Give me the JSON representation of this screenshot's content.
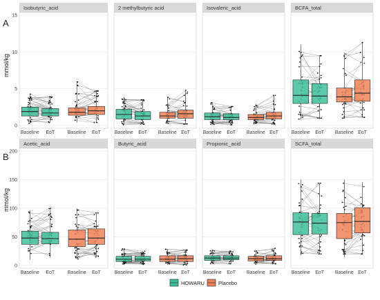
{
  "colors": {
    "howaru": "#3fbf9b",
    "placebo": "#f0825a",
    "strip": "#d9d9d9",
    "grid": "#ebebeb",
    "line": "#7a7a7a"
  },
  "legend": {
    "items": [
      {
        "label": "HOWARU",
        "color": "#3fbf9b"
      },
      {
        "label": "Placebo",
        "color": "#f0825a"
      }
    ]
  },
  "chart_data": [
    {
      "type": "box",
      "panel_label": "A",
      "ylabel": "mmol/kg",
      "ylim": [
        0,
        15
      ],
      "yticks": [
        0,
        5,
        10,
        15
      ],
      "xtick_labels": [
        "Baseline",
        "EoT",
        "Baseline",
        "EoT"
      ],
      "groups": [
        "HOWARU",
        "Placebo"
      ],
      "facets": [
        {
          "title": "Isobutyric_acid",
          "boxes": [
            {
              "group": "HOWARU",
              "time": "Baseline",
              "q1": 1.3,
              "median": 1.9,
              "q3": 2.5,
              "lo": 0.3,
              "hi": 4.3
            },
            {
              "group": "HOWARU",
              "time": "EoT",
              "q1": 1.3,
              "median": 1.7,
              "q3": 2.3,
              "lo": 0.4,
              "hi": 3.9
            },
            {
              "group": "Placebo",
              "time": "Baseline",
              "q1": 1.4,
              "median": 1.8,
              "q3": 2.4,
              "lo": 0.4,
              "hi": 6.0
            },
            {
              "group": "Placebo",
              "time": "EoT",
              "q1": 1.5,
              "median": 2.0,
              "q3": 2.6,
              "lo": 0.4,
              "hi": 4.7
            }
          ]
        },
        {
          "title": "2 methylbutyric acid",
          "boxes": [
            {
              "group": "HOWARU",
              "time": "Baseline",
              "q1": 0.9,
              "median": 1.5,
              "q3": 2.2,
              "lo": 0.1,
              "hi": 3.9
            },
            {
              "group": "HOWARU",
              "time": "EoT",
              "q1": 0.8,
              "median": 1.3,
              "q3": 1.9,
              "lo": 0.2,
              "hi": 3.5
            },
            {
              "group": "Placebo",
              "time": "Baseline",
              "q1": 1.0,
              "median": 1.3,
              "q3": 1.8,
              "lo": 0.2,
              "hi": 3.9
            },
            {
              "group": "Placebo",
              "time": "EoT",
              "q1": 1.0,
              "median": 1.6,
              "q3": 2.1,
              "lo": 0.2,
              "hi": 4.8
            }
          ]
        },
        {
          "title": "Isovaleric_acid",
          "boxes": [
            {
              "group": "HOWARU",
              "time": "Baseline",
              "q1": 0.8,
              "median": 1.2,
              "q3": 1.7,
              "lo": 0.1,
              "hi": 3.2
            },
            {
              "group": "HOWARU",
              "time": "EoT",
              "q1": 0.8,
              "median": 1.1,
              "q3": 1.6,
              "lo": 0.1,
              "hi": 2.7
            },
            {
              "group": "Placebo",
              "time": "Baseline",
              "q1": 0.8,
              "median": 1.1,
              "q3": 1.5,
              "lo": 0.2,
              "hi": 2.9
            },
            {
              "group": "Placebo",
              "time": "EoT",
              "q1": 0.9,
              "median": 1.3,
              "q3": 1.8,
              "lo": 0.2,
              "hi": 4.1
            }
          ]
        },
        {
          "title": "BCFA_total",
          "boxes": [
            {
              "group": "HOWARU",
              "time": "Baseline",
              "q1": 3.0,
              "median": 4.1,
              "q3": 6.2,
              "lo": 0.8,
              "hi": 11.0
            },
            {
              "group": "HOWARU",
              "time": "EoT",
              "q1": 3.0,
              "median": 4.0,
              "q3": 5.7,
              "lo": 1.0,
              "hi": 9.5
            },
            {
              "group": "Placebo",
              "time": "Baseline",
              "q1": 3.2,
              "median": 3.9,
              "q3": 5.1,
              "lo": 1.0,
              "hi": 9.9
            },
            {
              "group": "Placebo",
              "time": "EoT",
              "q1": 3.3,
              "median": 4.4,
              "q3": 6.2,
              "lo": 1.1,
              "hi": 11.3
            }
          ]
        }
      ]
    },
    {
      "type": "box",
      "panel_label": "B",
      "ylabel": "mmol/kg",
      "ylim": [
        0,
        200
      ],
      "yticks": [
        0,
        50,
        100,
        150,
        200
      ],
      "xtick_labels": [
        "Baseline",
        "EoT",
        "Baseline",
        "EoT"
      ],
      "groups": [
        "HOWARU",
        "Placebo"
      ],
      "facets": [
        {
          "title": "Acetic_acid",
          "boxes": [
            {
              "group": "HOWARU",
              "time": "Baseline",
              "q1": 37,
              "median": 48,
              "q3": 60,
              "lo": 10,
              "hi": 96
            },
            {
              "group": "HOWARU",
              "time": "EoT",
              "q1": 38,
              "median": 47,
              "q3": 58,
              "lo": 14,
              "hi": 100
            },
            {
              "group": "Placebo",
              "time": "Baseline",
              "q1": 33,
              "median": 46,
              "q3": 62,
              "lo": 11,
              "hi": 100
            },
            {
              "group": "Placebo",
              "time": "EoT",
              "q1": 37,
              "median": 48,
              "q3": 64,
              "lo": 15,
              "hi": 92
            }
          ]
        },
        {
          "title": "Butyric_acid",
          "boxes": [
            {
              "group": "HOWARU",
              "time": "Baseline",
              "q1": 7,
              "median": 11,
              "q3": 16,
              "lo": 1,
              "hi": 30
            },
            {
              "group": "HOWARU",
              "time": "EoT",
              "q1": 8,
              "median": 11,
              "q3": 16,
              "lo": 2,
              "hi": 25
            },
            {
              "group": "Placebo",
              "time": "Baseline",
              "q1": 7,
              "median": 11,
              "q3": 17,
              "lo": 1,
              "hi": 29
            },
            {
              "group": "Placebo",
              "time": "EoT",
              "q1": 7,
              "median": 12,
              "q3": 17,
              "lo": 1,
              "hi": 27
            }
          ]
        },
        {
          "title": "Propionic_acid",
          "boxes": [
            {
              "group": "HOWARU",
              "time": "Baseline",
              "q1": 9,
              "median": 13,
              "q3": 17,
              "lo": 3,
              "hi": 28
            },
            {
              "group": "HOWARU",
              "time": "EoT",
              "q1": 10,
              "median": 13,
              "q3": 17,
              "lo": 3,
              "hi": 25
            },
            {
              "group": "Placebo",
              "time": "Baseline",
              "q1": 8,
              "median": 12,
              "q3": 16,
              "lo": 2,
              "hi": 26
            },
            {
              "group": "Placebo",
              "time": "EoT",
              "q1": 9,
              "median": 12,
              "q3": 17,
              "lo": 3,
              "hi": 30
            }
          ]
        },
        {
          "title": "SCFA_total",
          "boxes": [
            {
              "group": "HOWARU",
              "time": "Baseline",
              "q1": 54,
              "median": 76,
              "q3": 92,
              "lo": 18,
              "hi": 150
            },
            {
              "group": "HOWARU",
              "time": "EoT",
              "q1": 55,
              "median": 74,
              "q3": 91,
              "lo": 20,
              "hi": 144
            },
            {
              "group": "Placebo",
              "time": "Baseline",
              "q1": 47,
              "median": 75,
              "q3": 91,
              "lo": 14,
              "hi": 150
            },
            {
              "group": "Placebo",
              "time": "EoT",
              "q1": 57,
              "median": 77,
              "q3": 101,
              "lo": 20,
              "hi": 146
            }
          ]
        }
      ]
    }
  ]
}
